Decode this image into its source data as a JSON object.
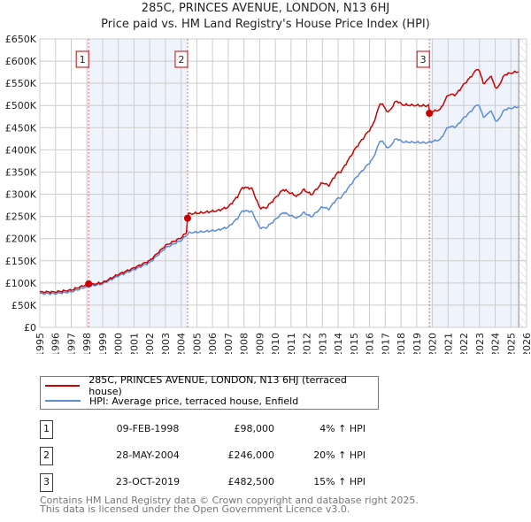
{
  "title": "285C, PRINCES AVENUE, LONDON, N13 6HJ",
  "subtitle": "Price paid vs. HM Land Registry's House Price Index (HPI)",
  "colors": {
    "property": "#cc0000",
    "hpi": "#5b8dd6",
    "shade": "#eef3fc",
    "grid": "#cccccc"
  },
  "chart_data": {
    "type": "line",
    "title": "285C, PRINCES AVENUE, LONDON, N13 6HJ — Price paid vs. HM Land Registry's House Price Index (HPI)",
    "xlim": [
      1995,
      2026
    ],
    "ylim": [
      0,
      650000
    ],
    "x_ticks": [
      "1995",
      "1996",
      "1997",
      "1998",
      "1999",
      "2000",
      "2001",
      "2002",
      "2003",
      "2004",
      "2005",
      "2006",
      "2007",
      "2008",
      "2009",
      "2010",
      "2011",
      "2012",
      "2013",
      "2014",
      "2015",
      "2016",
      "2017",
      "2018",
      "2019",
      "2020",
      "2021",
      "2022",
      "2023",
      "2024",
      "2025",
      "2026"
    ],
    "y_ticks": [
      {
        "v": 0,
        "label": "£0"
      },
      {
        "v": 50000,
        "label": "£50K"
      },
      {
        "v": 100000,
        "label": "£100K"
      },
      {
        "v": 150000,
        "label": "£150K"
      },
      {
        "v": 200000,
        "label": "£200K"
      },
      {
        "v": 250000,
        "label": "£250K"
      },
      {
        "v": 300000,
        "label": "£300K"
      },
      {
        "v": 350000,
        "label": "£350K"
      },
      {
        "v": 400000,
        "label": "£400K"
      },
      {
        "v": 450000,
        "label": "£450K"
      },
      {
        "v": 500000,
        "label": "£500K"
      },
      {
        "v": 550000,
        "label": "£550K"
      },
      {
        "v": 600000,
        "label": "£600K"
      },
      {
        "v": 650000,
        "label": "£650K"
      }
    ],
    "grid": true,
    "series": [
      {
        "name": "HPI: Average price, terraced house, Enfield",
        "x": [
          1995,
          1996,
          1997,
          1998,
          1999,
          2000,
          2001,
          2002,
          2003,
          2004,
          2004.5,
          2005.5,
          2006.3,
          2007,
          2007.6,
          2007.9,
          2008.5,
          2009,
          2009.4,
          2010.5,
          2011.4,
          2011.8,
          2012.3,
          2013,
          2013.4,
          2013.9,
          2014.2,
          2015.1,
          2016.2,
          2016.7,
          2017.2,
          2017.7,
          2018.1,
          2019.6,
          2020.5,
          2021,
          2021.5,
          2022,
          2022.4,
          2022.9,
          2023.3,
          2023.7,
          2024.1,
          2024.6,
          2025.3,
          2025.5
        ],
        "y": [
          76000,
          76000,
          80000,
          92000,
          98000,
          116000,
          130000,
          146000,
          179000,
          196000,
          213000,
          216000,
          219000,
          226000,
          246000,
          263000,
          261000,
          225000,
          224000,
          259000,
          246000,
          259000,
          249000,
          272000,
          266000,
          289000,
          293000,
          336000,
          379000,
          423000,
          403000,
          426000,
          418000,
          416000,
          423000,
          452000,
          452000,
          472000,
          485000,
          504000,
          472000,
          489000,
          462000,
          491000,
          496000,
          497000
        ]
      },
      {
        "name": "285C, PRINCES AVENUE, LONDON, N13 6HJ (terraced house)",
        "derived_ratio_to_hpi": [
          [
            1995,
            1998.11,
            1.05
          ],
          [
            1998.11,
            2004.41,
            1.03
          ],
          [
            2004.41,
            2019.81,
            1.2
          ],
          [
            2019.81,
            2025.5,
            1.16
          ]
        ]
      }
    ],
    "sales": [
      {
        "n": "1",
        "x": 1998.11,
        "price": 98000
      },
      {
        "n": "2",
        "x": 2004.41,
        "price": 246000
      },
      {
        "n": "3",
        "x": 2019.81,
        "price": 482500
      }
    ],
    "shaded_ranges": [
      [
        1998.11,
        2004.41
      ],
      [
        2019.81,
        2025.5
      ]
    ],
    "hatched_from": 2025.5,
    "legend_position": "below"
  },
  "legend": {
    "property": "285C, PRINCES AVENUE, LONDON, N13 6HJ (terraced house)",
    "hpi": "HPI: Average price, terraced house, Enfield"
  },
  "transactions": [
    {
      "n": "1",
      "date": "09-FEB-1998",
      "price": "£98,000",
      "hpi": "4% ↑ HPI"
    },
    {
      "n": "2",
      "date": "28-MAY-2004",
      "price": "£246,000",
      "hpi": "20% ↑ HPI"
    },
    {
      "n": "3",
      "date": "23-OCT-2019",
      "price": "£482,500",
      "hpi": "15% ↑ HPI"
    }
  ],
  "footer": {
    "line1": "Contains HM Land Registry data © Crown copyright and database right 2025.",
    "line2": "This data is licensed under the Open Government Licence v3.0."
  }
}
